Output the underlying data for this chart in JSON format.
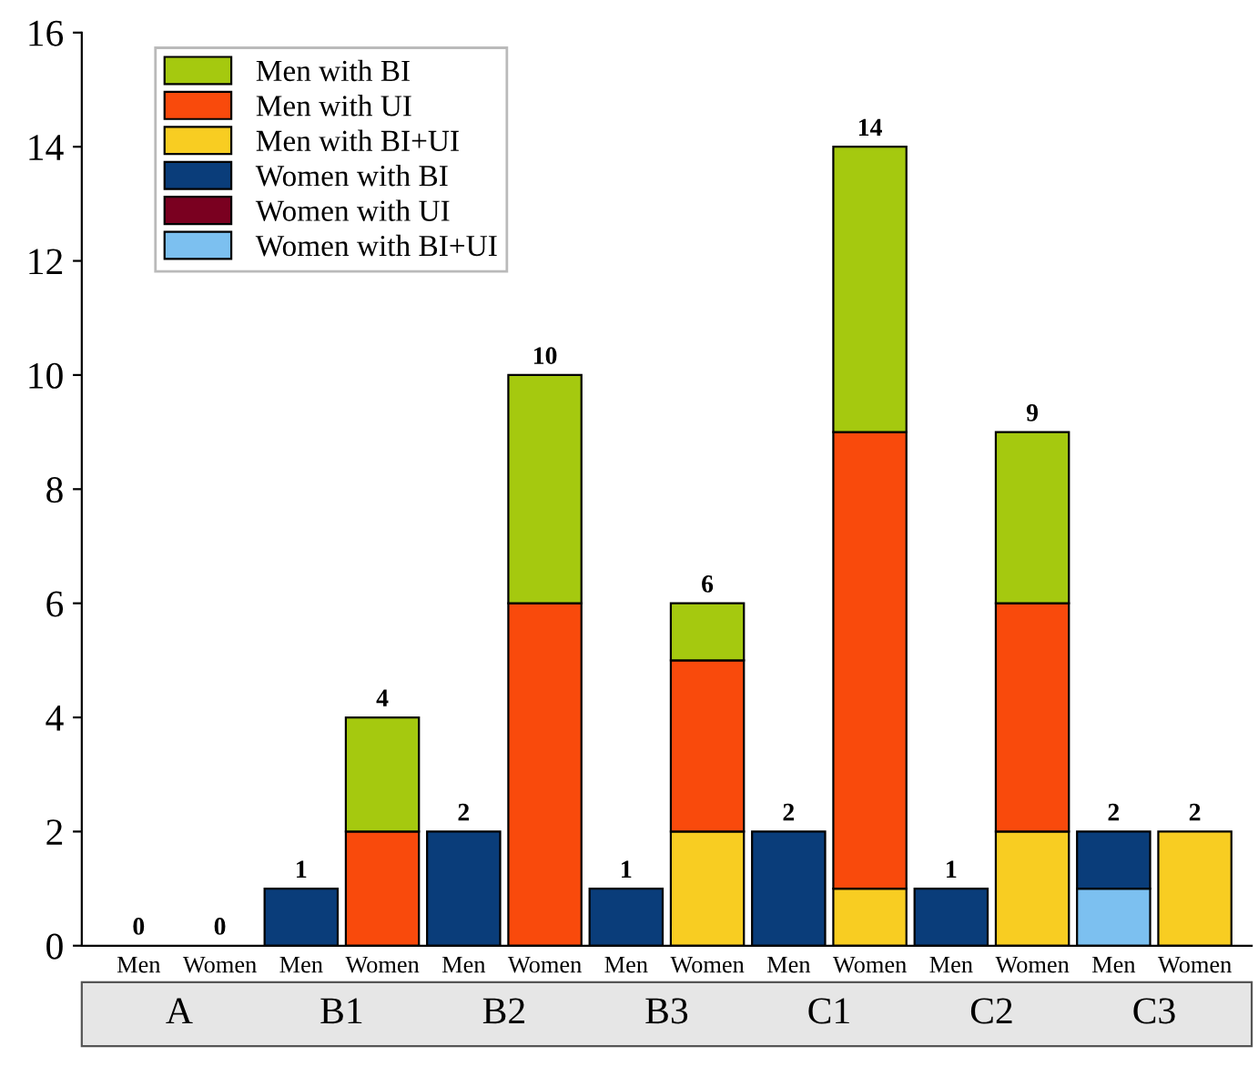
{
  "chart_data": {
    "type": "bar",
    "stacked": true,
    "categories": [
      "Men",
      "Women",
      "Men",
      "Women",
      "Men",
      "Women",
      "Men",
      "Women",
      "Men",
      "Women",
      "Men",
      "Women",
      "Men",
      "Women"
    ],
    "series": [
      {
        "name": "Women with BI+UI",
        "color": "#7cc0f0",
        "values": [
          0,
          0,
          0,
          0,
          0,
          0,
          0,
          0,
          0,
          0,
          0,
          0,
          1,
          0
        ]
      },
      {
        "name": "Women with UI",
        "color": "#7a0020",
        "values": [
          0,
          0,
          0,
          0,
          0,
          0,
          0,
          0,
          0,
          0,
          0,
          0,
          0,
          0
        ]
      },
      {
        "name": "Women with BI",
        "color": "#0a3d7a",
        "values": [
          0,
          0,
          1,
          0,
          2,
          0,
          1,
          0,
          2,
          0,
          1,
          0,
          1,
          0
        ]
      },
      {
        "name": "Men with BI+UI",
        "color": "#f8cd22",
        "values": [
          0,
          0,
          0,
          0,
          0,
          0,
          0,
          2,
          0,
          1,
          0,
          2,
          0,
          2
        ]
      },
      {
        "name": "Men with UI",
        "color": "#f94a0c",
        "values": [
          0,
          0,
          0,
          2,
          0,
          6,
          0,
          3,
          0,
          8,
          0,
          4,
          0,
          0
        ]
      },
      {
        "name": "Men with BI",
        "color": "#a5c90f",
        "values": [
          0,
          0,
          0,
          2,
          0,
          4,
          0,
          1,
          0,
          5,
          0,
          3,
          0,
          0
        ]
      }
    ],
    "totals": [
      "0",
      "0",
      "1",
      "4",
      "2",
      "10",
      "1",
      "6",
      "2",
      "14",
      "1",
      "9",
      "2",
      "2"
    ],
    "annotations": [
      "A",
      "B1",
      "B2",
      "B3",
      "C1",
      "C2",
      "C3"
    ],
    "ylim": [
      0,
      16
    ],
    "yticks": [
      0,
      2,
      4,
      6,
      8,
      10,
      12,
      14,
      16
    ],
    "grid": false,
    "legend": "top left"
  }
}
